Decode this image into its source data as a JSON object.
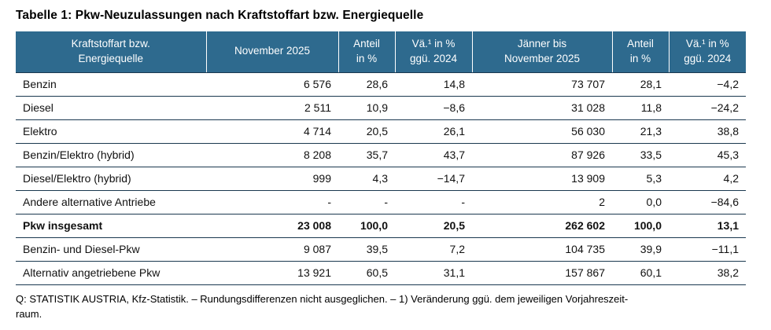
{
  "page": {
    "source_note": "Q: STATISTIK AUSTRIA, Kfz-Statistik. – Rundungsdifferenzen nicht ausgeglichen. – 1) Veränderung ggü. dem jeweiligen Vorjahreszeit-\nraum."
  },
  "colors": {
    "header_bg": "#2E6A8E",
    "header_text": "#FFFFFF",
    "grid_line": "#1A384F"
  },
  "chart_data": {
    "type": "table",
    "title": "Tabelle 1: Pkw-Neuzulassungen nach Kraftstoffart bzw. Energiequelle",
    "columns": [
      "Kraftstoffart bzw.\nEnergiequelle",
      "November 2025",
      "Anteil\nin %",
      "Vä.¹ in %\nggü. 2024",
      "Jänner bis\nNovember 2025",
      "Anteil\nin %",
      "Vä.¹ in %\nggü. 2024"
    ],
    "rows": [
      {
        "label": "Benzin",
        "values": [
          "6 576",
          "28,6",
          "14,8",
          "73 707",
          "28,1",
          "−4,2"
        ],
        "bold": false
      },
      {
        "label": "Diesel",
        "values": [
          "2 511",
          "10,9",
          "−8,6",
          "31 028",
          "11,8",
          "−24,2"
        ],
        "bold": false
      },
      {
        "label": "Elektro",
        "values": [
          "4 714",
          "20,5",
          "26,1",
          "56 030",
          "21,3",
          "38,8"
        ],
        "bold": false
      },
      {
        "label": "Benzin/Elektro (hybrid)",
        "values": [
          "8 208",
          "35,7",
          "43,7",
          "87 926",
          "33,5",
          "45,3"
        ],
        "bold": false
      },
      {
        "label": "Diesel/Elektro (hybrid)",
        "values": [
          "999",
          "4,3",
          "−14,7",
          "13 909",
          "5,3",
          "4,2"
        ],
        "bold": false
      },
      {
        "label": "Andere alternative Antriebe",
        "values": [
          "-",
          "-",
          "-",
          "2",
          "0,0",
          "−84,6"
        ],
        "bold": false
      },
      {
        "label": "Pkw insgesamt",
        "values": [
          "23 008",
          "100,0",
          "20,5",
          "262 602",
          "100,0",
          "13,1"
        ],
        "bold": true
      },
      {
        "label": "Benzin- und Diesel-Pkw",
        "values": [
          "9 087",
          "39,5",
          "7,2",
          "104 735",
          "39,9",
          "−11,1"
        ],
        "bold": false
      },
      {
        "label": "Alternativ angetriebene Pkw",
        "values": [
          "13 921",
          "60,5",
          "31,1",
          "157 867",
          "60,1",
          "38,2"
        ],
        "bold": false
      }
    ]
  }
}
